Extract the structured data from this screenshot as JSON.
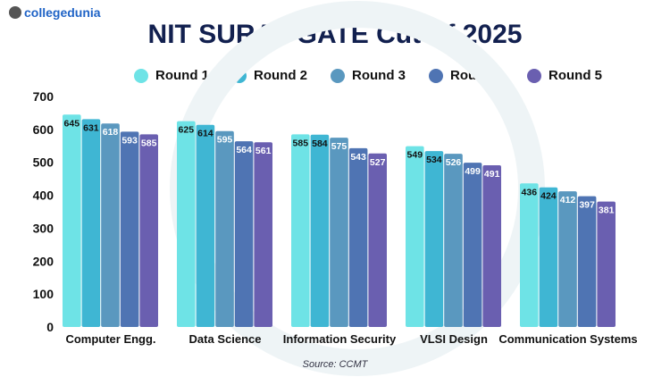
{
  "brand": "collegedunia",
  "chart_data": {
    "type": "bar",
    "title": "NIT SURAT GATE Cutoff 2025",
    "categories": [
      "Computer Engg.",
      "Data Science",
      "Information Security",
      "VLSI Design",
      "Communication Systems"
    ],
    "series": [
      {
        "name": "Round 1",
        "color": "#6ee3e6",
        "values": [
          645,
          625,
          585,
          549,
          436
        ]
      },
      {
        "name": "Round 2",
        "color": "#3fb6d3",
        "values": [
          631,
          614,
          584,
          534,
          424
        ]
      },
      {
        "name": "Round 3",
        "color": "#5a98bf",
        "values": [
          618,
          595,
          575,
          526,
          412
        ]
      },
      {
        "name": "Round 4",
        "color": "#4f74b3",
        "values": [
          593,
          564,
          543,
          499,
          397
        ]
      },
      {
        "name": "Round 5",
        "color": "#6a5fb0",
        "values": [
          585,
          561,
          527,
          491,
          381
        ]
      }
    ],
    "yticks": [
      0,
      100,
      200,
      300,
      400,
      500,
      600,
      700
    ],
    "ylim": [
      0,
      700
    ],
    "grid": false,
    "legend": "top",
    "source": "Source: CCMT"
  }
}
